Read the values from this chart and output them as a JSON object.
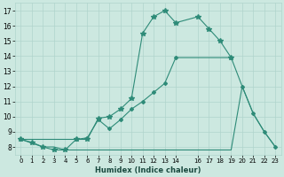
{
  "xlabel": "Humidex (Indice chaleur)",
  "xlim": [
    -0.5,
    23.5
  ],
  "ylim": [
    7.5,
    17.5
  ],
  "xticks": [
    0,
    1,
    2,
    3,
    4,
    5,
    6,
    7,
    8,
    9,
    10,
    11,
    12,
    13,
    14,
    16,
    17,
    18,
    19,
    20,
    21,
    22,
    23
  ],
  "yticks": [
    8,
    9,
    10,
    11,
    12,
    13,
    14,
    15,
    16,
    17
  ],
  "bg_color": "#cce8e0",
  "grid_color": "#b0d4cc",
  "line_color": "#2e8b78",
  "curve1_x": [
    0,
    1,
    2,
    3,
    4,
    5,
    6,
    7,
    8,
    9,
    10,
    11,
    12,
    13,
    14,
    16,
    17,
    18,
    19
  ],
  "curve1_y": [
    8.5,
    8.3,
    8.0,
    7.8,
    7.8,
    8.5,
    8.5,
    9.9,
    10.0,
    10.5,
    11.2,
    15.5,
    16.6,
    17.0,
    16.2,
    16.6,
    15.8,
    15.0,
    13.9
  ],
  "curve2_x": [
    0,
    5,
    6,
    7,
    8,
    9,
    10,
    11,
    12,
    13,
    14,
    19,
    20,
    21,
    22,
    23
  ],
  "curve2_y": [
    8.5,
    8.5,
    8.6,
    9.8,
    9.2,
    9.8,
    10.5,
    11.0,
    11.6,
    12.2,
    13.9,
    13.9,
    12.0,
    10.2,
    9.0,
    8.0
  ],
  "curve3_x": [
    0,
    2,
    3,
    4,
    5,
    14,
    19,
    20,
    21,
    22,
    23
  ],
  "curve3_y": [
    8.5,
    8.0,
    8.0,
    7.8,
    7.8,
    7.8,
    7.8,
    12.0,
    10.2,
    9.0,
    8.0
  ]
}
